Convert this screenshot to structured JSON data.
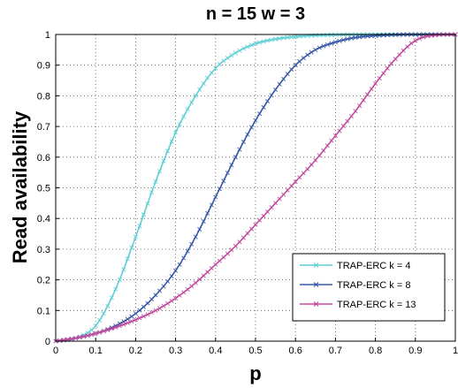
{
  "chart_data": {
    "type": "line",
    "title": "n =  15 w = 3",
    "xlabel": "p",
    "ylabel": "Read availability",
    "xlim": [
      0,
      1
    ],
    "ylim": [
      0,
      1
    ],
    "grid": true,
    "legend_position": "bottom-right",
    "x_ticks": [
      "0",
      "0.1",
      "0.2",
      "0.3",
      "0.4",
      "0.5",
      "0.6",
      "0.7",
      "0.8",
      "0.9",
      "1"
    ],
    "y_ticks": [
      "0",
      "0.1",
      "0.2",
      "0.3",
      "0.4",
      "0.5",
      "0.6",
      "0.7",
      "0.8",
      "0.9",
      "1"
    ],
    "x": [
      0,
      0.05,
      0.1,
      0.15,
      0.2,
      0.25,
      0.3,
      0.35,
      0.4,
      0.45,
      0.5,
      0.55,
      0.6,
      0.65,
      0.7,
      0.75,
      0.8,
      0.85,
      0.9,
      0.95,
      1
    ],
    "series": [
      {
        "name": "TRAP-ERC k = 4",
        "color": "#5fcfd6",
        "values": [
          0,
          0.01,
          0.05,
          0.17,
          0.34,
          0.52,
          0.68,
          0.8,
          0.89,
          0.94,
          0.97,
          0.985,
          0.993,
          0.997,
          0.999,
          1,
          1,
          1,
          1,
          1,
          1
        ]
      },
      {
        "name": "TRAP-ERC k = 8",
        "color": "#3658a6",
        "values": [
          0,
          0.01,
          0.025,
          0.05,
          0.09,
          0.15,
          0.23,
          0.34,
          0.47,
          0.6,
          0.72,
          0.82,
          0.9,
          0.95,
          0.975,
          0.99,
          0.996,
          0.999,
          1,
          1,
          1
        ]
      },
      {
        "name": "TRAP-ERC k = 13",
        "color": "#c04a9e",
        "values": [
          0,
          0.01,
          0.025,
          0.045,
          0.07,
          0.1,
          0.14,
          0.19,
          0.25,
          0.31,
          0.38,
          0.45,
          0.52,
          0.59,
          0.67,
          0.75,
          0.84,
          0.92,
          0.98,
          0.998,
          1
        ]
      }
    ]
  }
}
